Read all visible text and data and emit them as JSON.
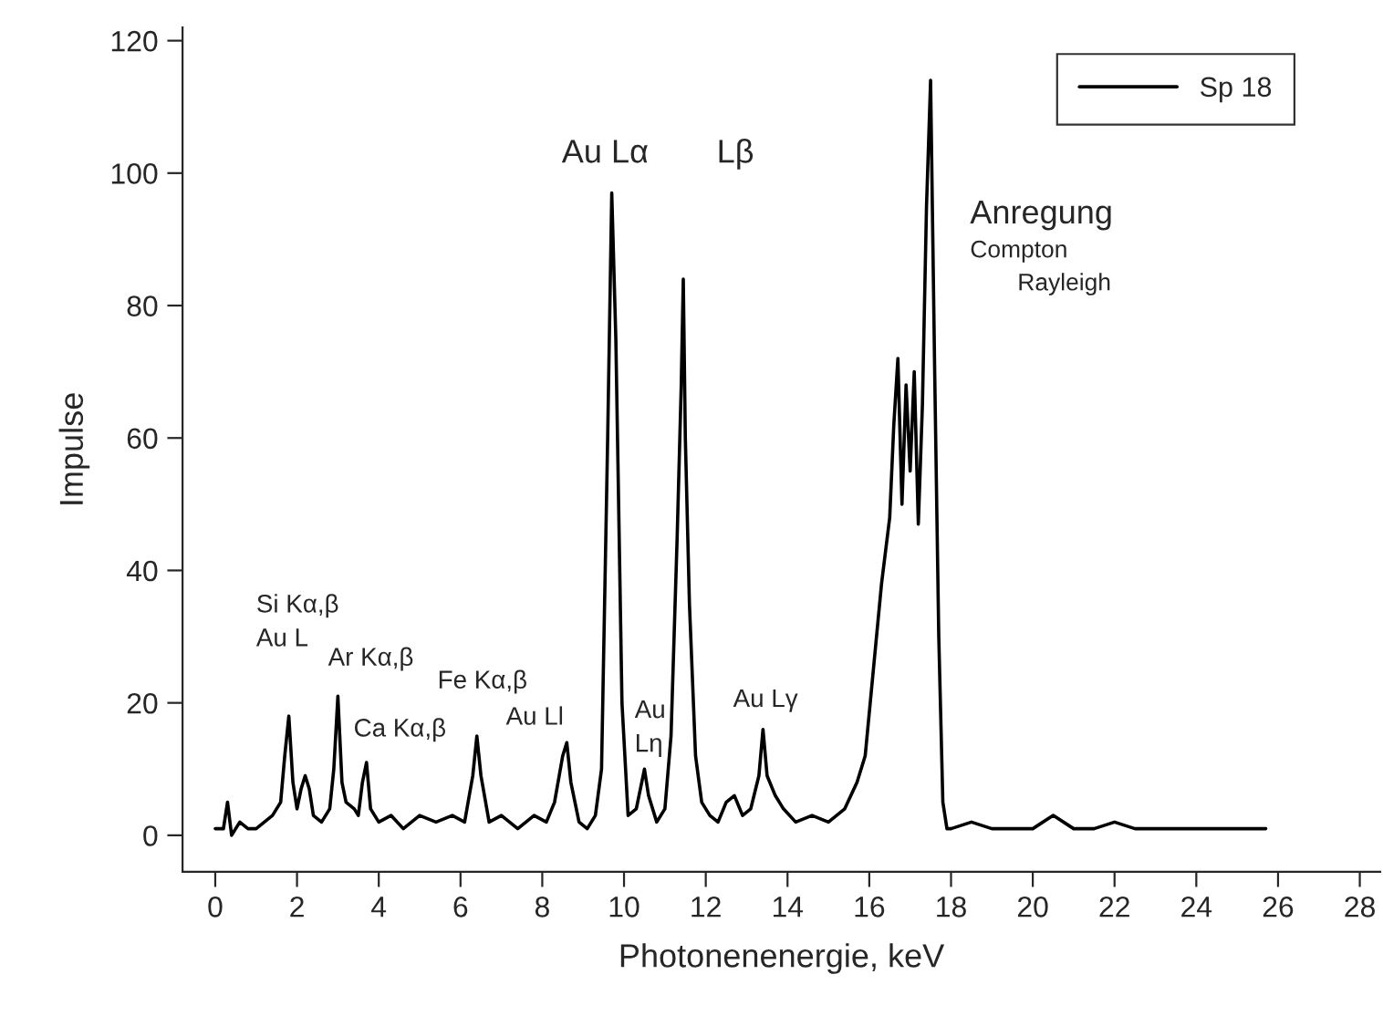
{
  "chart_data": {
    "type": "line",
    "xlabel": "Photonenenergie, keV",
    "ylabel": "Impulse",
    "xlim": [
      -0.8,
      28.5
    ],
    "ylim": [
      -5.5,
      122
    ],
    "xticks": [
      0,
      2,
      4,
      6,
      8,
      10,
      12,
      14,
      16,
      18,
      20,
      22,
      24,
      26,
      28
    ],
    "yticks": [
      0,
      20,
      40,
      60,
      80,
      100,
      120
    ],
    "grid": false,
    "legend": "top right",
    "marker": "none",
    "line_style": "solid",
    "series": [
      {
        "name": "Sp 18",
        "color": "#000000",
        "x": [
          0.0,
          0.2,
          0.3,
          0.4,
          0.6,
          0.8,
          1.0,
          1.2,
          1.4,
          1.6,
          1.7,
          1.8,
          1.9,
          2.0,
          2.1,
          2.2,
          2.3,
          2.4,
          2.6,
          2.8,
          2.9,
          3.0,
          3.1,
          3.2,
          3.4,
          3.5,
          3.6,
          3.7,
          3.8,
          4.0,
          4.3,
          4.6,
          5.0,
          5.4,
          5.8,
          6.1,
          6.3,
          6.4,
          6.5,
          6.7,
          7.0,
          7.4,
          7.8,
          8.1,
          8.3,
          8.5,
          8.6,
          8.7,
          8.9,
          9.1,
          9.3,
          9.45,
          9.6,
          9.7,
          9.8,
          9.95,
          10.1,
          10.3,
          10.5,
          10.6,
          10.8,
          11.0,
          11.15,
          11.3,
          11.4,
          11.45,
          11.5,
          11.6,
          11.75,
          11.9,
          12.1,
          12.3,
          12.5,
          12.7,
          12.9,
          13.1,
          13.3,
          13.4,
          13.5,
          13.7,
          13.9,
          14.2,
          14.6,
          15.0,
          15.4,
          15.7,
          15.9,
          16.1,
          16.3,
          16.5,
          16.6,
          16.7,
          16.8,
          16.9,
          17.0,
          17.1,
          17.2,
          17.3,
          17.4,
          17.5,
          17.6,
          17.7,
          17.8,
          17.9,
          18.0,
          18.5,
          19.0,
          19.5,
          20.0,
          20.5,
          21.0,
          21.5,
          22.0,
          22.5,
          23.0,
          23.5,
          24.0,
          24.5,
          25.0,
          25.7
        ],
        "values": [
          1,
          1,
          5,
          0,
          2,
          1,
          1,
          2,
          3,
          5,
          12,
          18,
          8,
          4,
          7,
          9,
          7,
          3,
          2,
          4,
          10,
          21,
          8,
          5,
          4,
          3,
          8,
          11,
          4,
          2,
          3,
          1,
          3,
          2,
          3,
          2,
          9,
          15,
          9,
          2,
          3,
          1,
          3,
          2,
          5,
          12,
          14,
          8,
          2,
          1,
          3,
          10,
          60,
          97,
          75,
          20,
          3,
          4,
          10,
          6,
          2,
          4,
          15,
          45,
          68,
          84,
          60,
          35,
          12,
          5,
          3,
          2,
          5,
          6,
          3,
          4,
          9,
          16,
          9,
          6,
          4,
          2,
          3,
          2,
          4,
          8,
          12,
          25,
          38,
          48,
          62,
          72,
          50,
          68,
          55,
          70,
          47,
          65,
          95,
          114,
          70,
          30,
          5,
          1,
          1,
          2,
          1,
          1,
          1,
          3,
          1,
          1,
          2,
          1,
          1,
          1,
          1,
          1,
          1,
          1
        ]
      }
    ],
    "annotations": [
      "Si Kα,β",
      "Au L",
      "Ar Kα,β",
      "Ca Kα,β",
      "Fe Kα,β",
      "Au Ll",
      "Au",
      "Lη",
      "Au Lγ",
      "Au Lα",
      "Lβ",
      "Anregung",
      "Compton",
      "Rayleigh"
    ]
  }
}
